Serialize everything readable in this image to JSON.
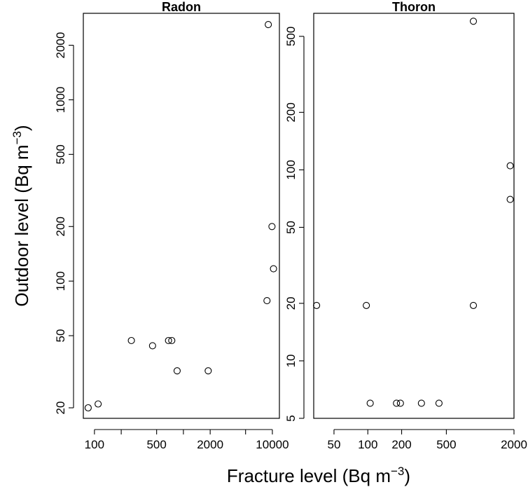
{
  "figure": {
    "xlabel": "Fracture level (Bq m",
    "ylabel": "Outdoor level (Bq m",
    "unit_exponent": "−3"
  },
  "chart_data": [
    {
      "type": "scatter",
      "title": "Radon",
      "x_scale": "log",
      "y_scale": "log",
      "xlim": [
        75,
        12000
      ],
      "ylim": [
        17.5,
        3000
      ],
      "xticks": [
        100,
        500,
        2000,
        10000
      ],
      "xtick_labels": [
        "100",
        "500",
        "2000",
        "10000"
      ],
      "x_minor_ticks": [
        200,
        1000,
        5000
      ],
      "yticks": [
        20,
        50,
        100,
        200,
        500,
        1000,
        2000
      ],
      "ytick_labels": [
        "20",
        "50",
        "100",
        "200",
        "500",
        "1000",
        "2000"
      ],
      "x": [
        85,
        110,
        260,
        450,
        680,
        740,
        850,
        1900,
        8700,
        9900,
        10300,
        9000
      ],
      "y": [
        20,
        21,
        47,
        44,
        47,
        47,
        32,
        32,
        78,
        200,
        117,
        2600
      ],
      "grid": false,
      "marker": "open-circle"
    },
    {
      "type": "scatter",
      "title": "Thoron",
      "x_scale": "log",
      "y_scale": "log",
      "xlim": [
        33,
        2000
      ],
      "ylim": [
        5,
        660
      ],
      "xticks": [
        50,
        100,
        200,
        500,
        2000
      ],
      "xtick_labels": [
        "50",
        "100",
        "200",
        "500",
        "2000"
      ],
      "yticks": [
        5,
        10,
        20,
        50,
        100,
        200,
        500
      ],
      "ytick_labels": [
        "5",
        "10",
        "20",
        "50",
        "100",
        "200",
        "500"
      ],
      "x": [
        35,
        97,
        105,
        180,
        195,
        300,
        430,
        870,
        870,
        1850,
        1850
      ],
      "y": [
        19.5,
        19.5,
        6,
        6,
        6,
        6,
        6,
        19.5,
        600,
        105,
        70
      ],
      "grid": false,
      "marker": "open-circle"
    }
  ]
}
